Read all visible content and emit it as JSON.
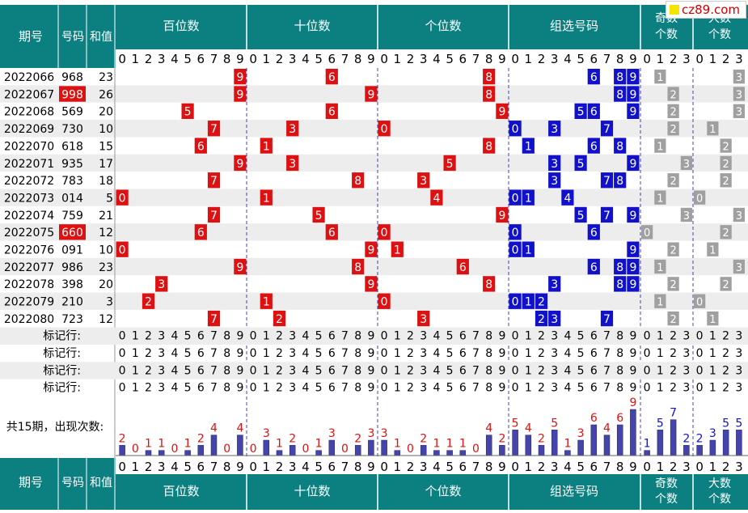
{
  "logo_text": "cz89.com",
  "colors": {
    "teal": "#0c8080",
    "red": "#dd1111",
    "blue": "#1111cc",
    "gray": "#a0a0a0",
    "bar": "#4444aa",
    "stripe": "#ededed"
  },
  "header": {
    "col_period": "期号",
    "col_number": "号码",
    "col_sum": "和值",
    "groups": [
      "百位数",
      "十位数",
      "个位数",
      "组选号码"
    ],
    "odd_even": [
      "奇数",
      "个数"
    ],
    "big_small": [
      "大数",
      "个数"
    ]
  },
  "digits": [
    "0",
    "1",
    "2",
    "3",
    "4",
    "5",
    "6",
    "7",
    "8",
    "9"
  ],
  "count_digits": [
    "0",
    "1",
    "2",
    "3"
  ],
  "rows": [
    {
      "period": "2022066",
      "number": "968",
      "sum": "23",
      "hundreds": 9,
      "tens": 6,
      "units": 8,
      "combo": [
        6,
        8,
        9
      ],
      "odd": 1,
      "big": 3
    },
    {
      "period": "2022067",
      "number": "998",
      "sum": "26",
      "hundreds": 9,
      "tens": 9,
      "units": 8,
      "combo": [
        8,
        9
      ],
      "odd": 2,
      "big": 3,
      "highlight": true
    },
    {
      "period": "2022068",
      "number": "569",
      "sum": "20",
      "hundreds": 5,
      "tens": 6,
      "units": 9,
      "combo": [
        5,
        6,
        9
      ],
      "odd": 2,
      "big": 3
    },
    {
      "period": "2022069",
      "number": "730",
      "sum": "10",
      "hundreds": 7,
      "tens": 3,
      "units": 0,
      "combo": [
        0,
        3,
        7
      ],
      "odd": 2,
      "big": 1
    },
    {
      "period": "2022070",
      "number": "618",
      "sum": "15",
      "hundreds": 6,
      "tens": 1,
      "units": 8,
      "combo": [
        1,
        6,
        8
      ],
      "odd": 1,
      "big": 2
    },
    {
      "period": "2022071",
      "number": "935",
      "sum": "17",
      "hundreds": 9,
      "tens": 3,
      "units": 5,
      "combo": [
        3,
        5,
        9
      ],
      "odd": 3,
      "big": 2
    },
    {
      "period": "2022072",
      "number": "783",
      "sum": "18",
      "hundreds": 7,
      "tens": 8,
      "units": 3,
      "combo": [
        3,
        7,
        8
      ],
      "odd": 2,
      "big": 2
    },
    {
      "period": "2022073",
      "number": "014",
      "sum": "5",
      "hundreds": 0,
      "tens": 1,
      "units": 4,
      "combo": [
        0,
        1,
        4
      ],
      "odd": 1,
      "big": 0
    },
    {
      "period": "2022074",
      "number": "759",
      "sum": "21",
      "hundreds": 7,
      "tens": 5,
      "units": 9,
      "combo": [
        5,
        7,
        9
      ],
      "odd": 3,
      "big": 3
    },
    {
      "period": "2022075",
      "number": "660",
      "sum": "12",
      "hundreds": 6,
      "tens": 6,
      "units": 0,
      "combo": [
        0,
        6
      ],
      "odd": 0,
      "big": 2,
      "highlight": true
    },
    {
      "period": "2022076",
      "number": "091",
      "sum": "10",
      "hundreds": 0,
      "tens": 9,
      "units": 1,
      "combo": [
        0,
        1,
        9
      ],
      "odd": 2,
      "big": 1
    },
    {
      "period": "2022077",
      "number": "986",
      "sum": "23",
      "hundreds": 9,
      "tens": 8,
      "units": 6,
      "combo": [
        6,
        8,
        9
      ],
      "odd": 1,
      "big": 3
    },
    {
      "period": "2022078",
      "number": "398",
      "sum": "20",
      "hundreds": 3,
      "tens": 9,
      "units": 8,
      "combo": [
        3,
        8,
        9
      ],
      "odd": 2,
      "big": 2
    },
    {
      "period": "2022079",
      "number": "210",
      "sum": "3",
      "hundreds": 2,
      "tens": 1,
      "units": 0,
      "combo": [
        0,
        1,
        2
      ],
      "odd": 1,
      "big": 0
    },
    {
      "period": "2022080",
      "number": "723",
      "sum": "12",
      "hundreds": 7,
      "tens": 2,
      "units": 3,
      "combo": [
        2,
        3,
        7
      ],
      "odd": 2,
      "big": 1
    }
  ],
  "marker_label": "标记行:",
  "marker_rows": 4,
  "stats_label": "共15期，出现次数:",
  "chart_data": {
    "type": "bar",
    "title": "共15期，出现次数",
    "periods": 15,
    "series": [
      {
        "name": "百位数",
        "categories": [
          "0",
          "1",
          "2",
          "3",
          "4",
          "5",
          "6",
          "7",
          "8",
          "9"
        ],
        "values": [
          2,
          0,
          1,
          1,
          0,
          1,
          2,
          4,
          0,
          4
        ]
      },
      {
        "name": "十位数",
        "categories": [
          "0",
          "1",
          "2",
          "3",
          "4",
          "5",
          "6",
          "7",
          "8",
          "9"
        ],
        "values": [
          0,
          3,
          1,
          2,
          0,
          1,
          3,
          0,
          2,
          3
        ]
      },
      {
        "name": "个位数",
        "categories": [
          "0",
          "1",
          "2",
          "3",
          "4",
          "5",
          "6",
          "7",
          "8",
          "9"
        ],
        "values": [
          3,
          1,
          0,
          2,
          1,
          1,
          1,
          0,
          4,
          2
        ]
      },
      {
        "name": "组选号码",
        "categories": [
          "0",
          "1",
          "2",
          "3",
          "4",
          "5",
          "6",
          "7",
          "8",
          "9"
        ],
        "values": [
          5,
          4,
          2,
          5,
          1,
          3,
          6,
          4,
          6,
          9
        ]
      },
      {
        "name": "奇数个数",
        "categories": [
          "0",
          "1",
          "2",
          "3"
        ],
        "values": [
          1,
          5,
          7,
          2
        ]
      },
      {
        "name": "大数个数",
        "categories": [
          "0",
          "1",
          "2",
          "3"
        ],
        "values": [
          2,
          3,
          5,
          5
        ]
      }
    ]
  }
}
